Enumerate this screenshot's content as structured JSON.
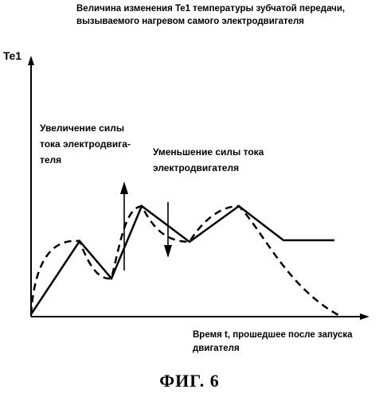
{
  "title": "Величина изменения Te1 температуры зубчатой передачи, вызываемого нагревом самого электродвигателя",
  "y_label": "Te1",
  "annotation_increase": "Увеличение силы тока электродвига-теля",
  "annotation_decrease": "Уменьшение силы тока электродвигателя",
  "x_label": "Время t, прошедшее после запуска двигателя",
  "figure_caption": "ФИГ. 6",
  "colors": {
    "line": "#000000",
    "background": "#ffffff"
  }
}
